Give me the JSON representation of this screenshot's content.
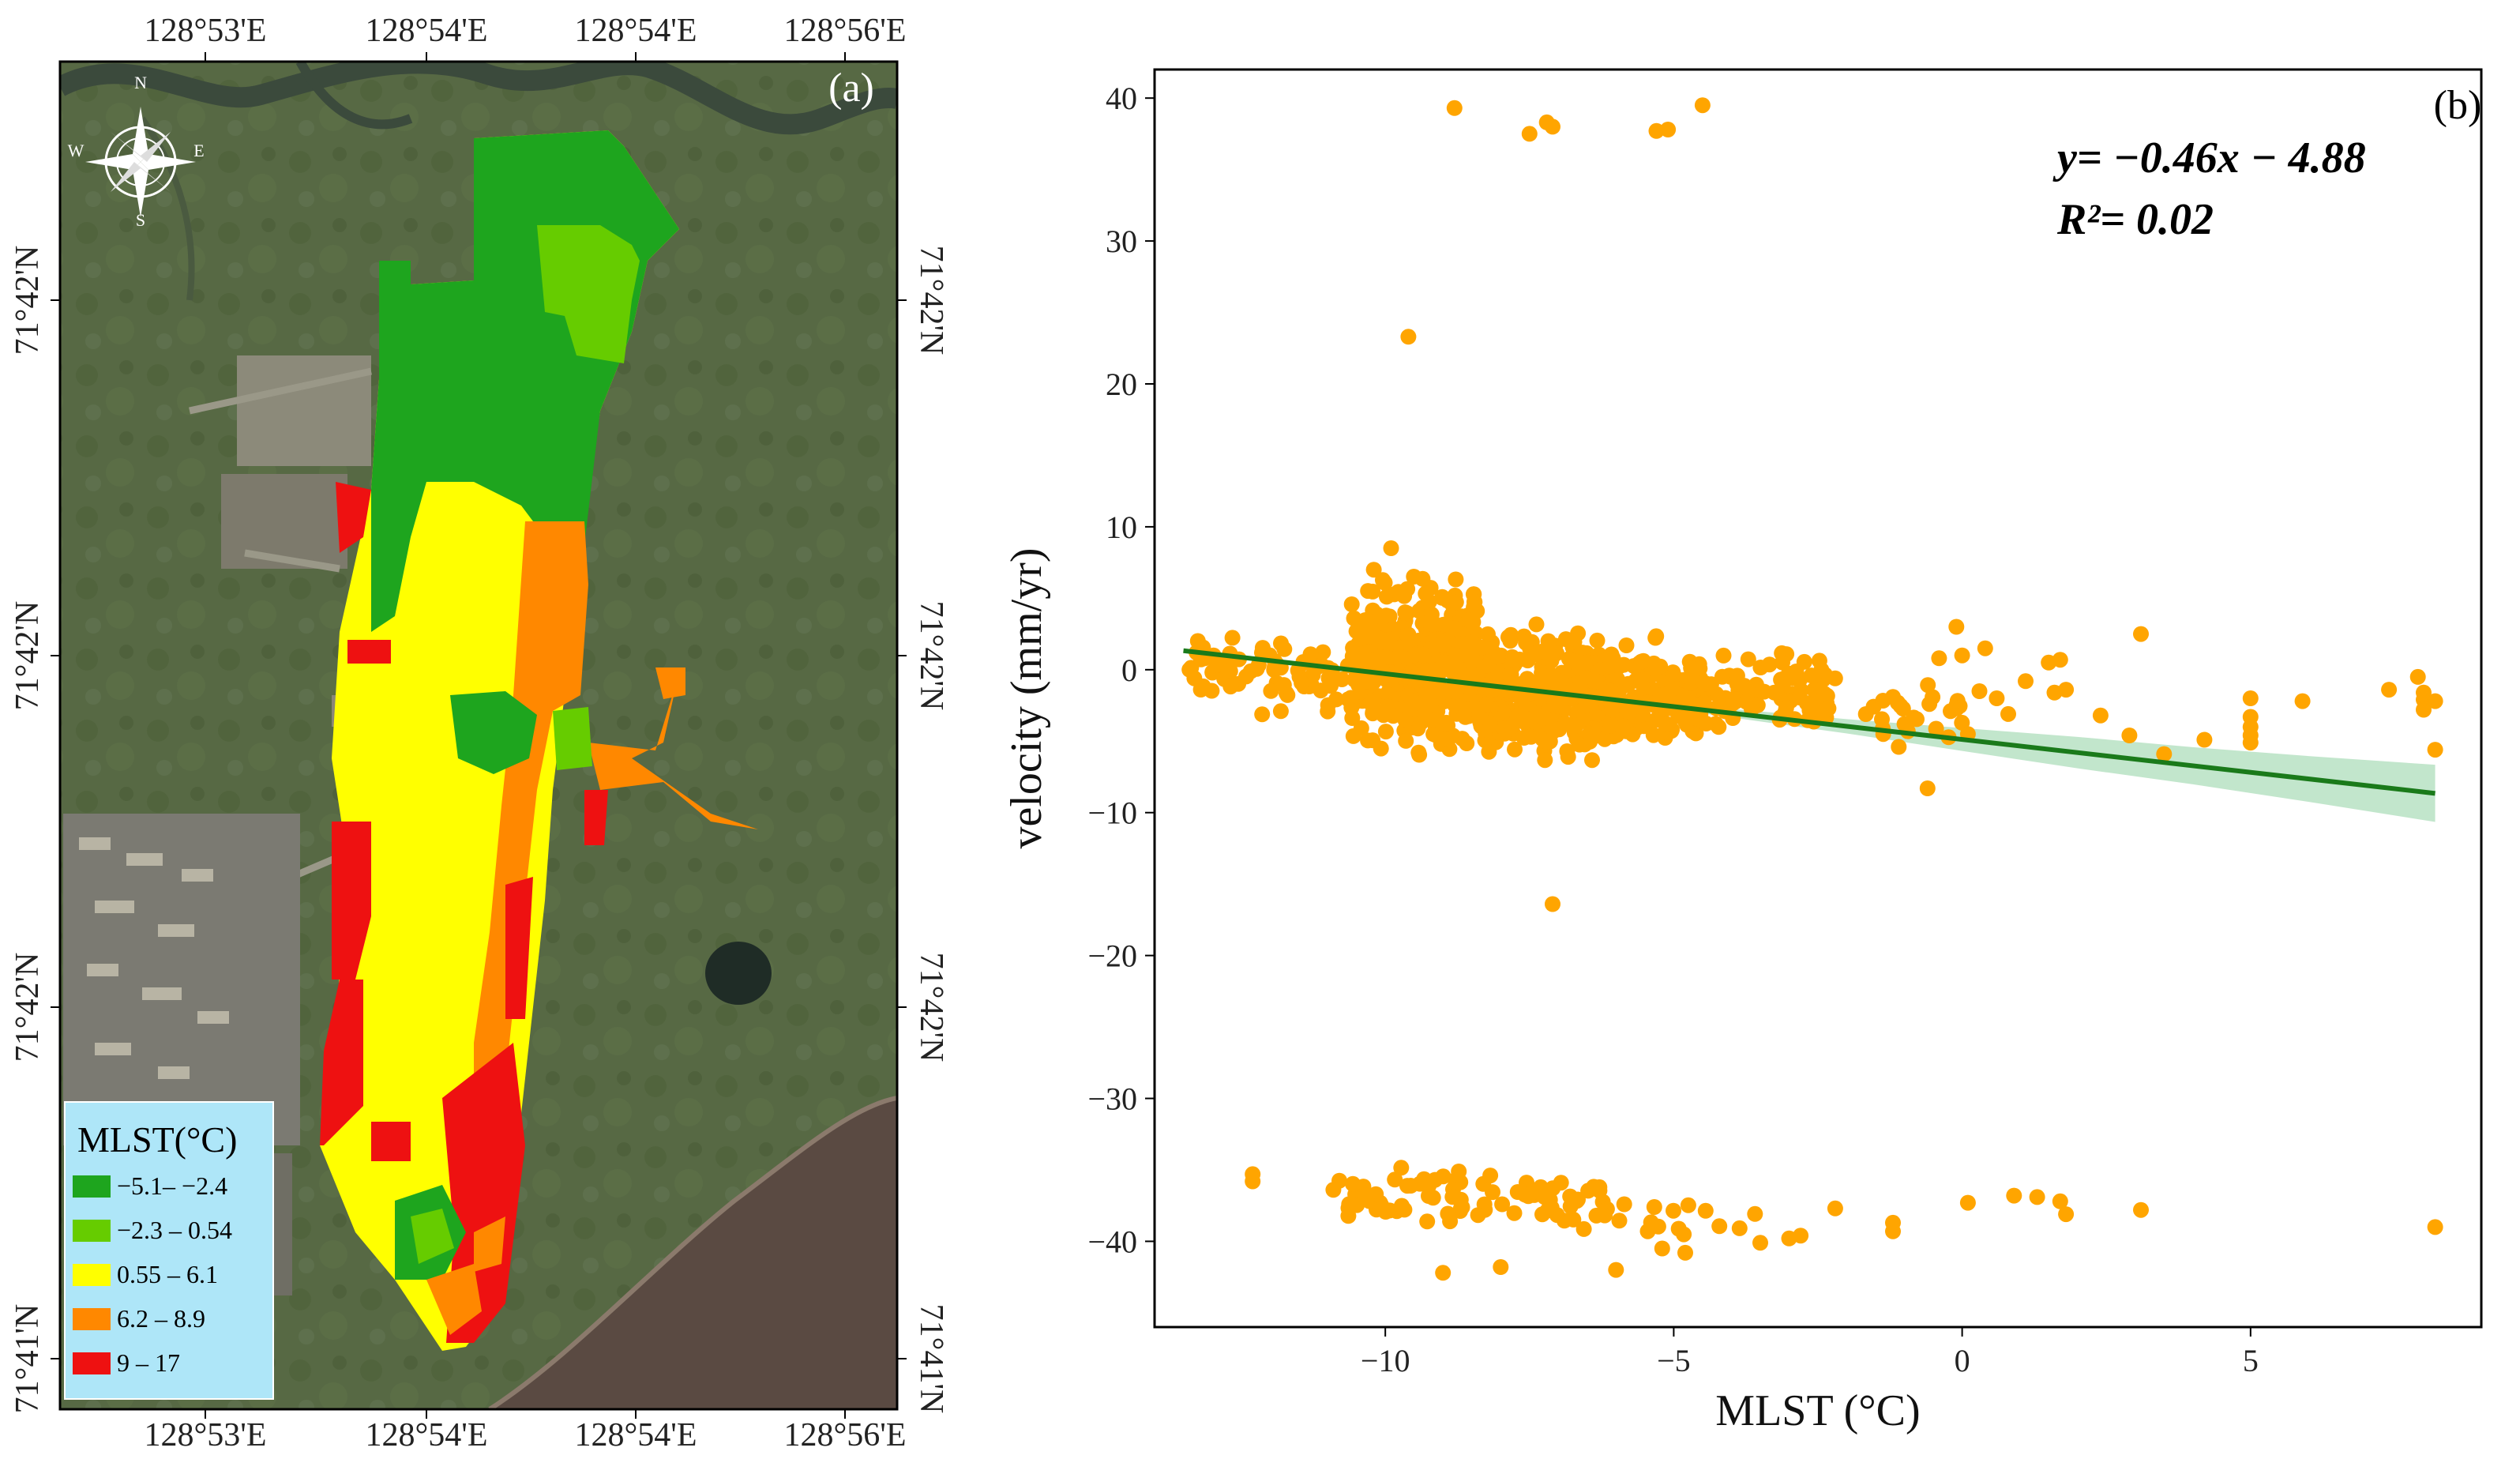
{
  "colors": {
    "green_dark": "#1ea51e",
    "green_light": "#66cc00",
    "yellow": "#ffff00",
    "orange": "#ff8800",
    "red": "#ee1111",
    "point": "#ffa500",
    "fit_line": "#1a7a1a",
    "ci_band": "#b7e2c3",
    "legend_bg": "#aee6f8"
  },
  "map": {
    "panel_label": "(a)",
    "top_ticks": [
      "128°53'E",
      "128°54'E",
      "128°54'E",
      "128°56'E"
    ],
    "bottom_ticks": [
      "128°53'E",
      "128°54'E",
      "128°54'E",
      "128°56'E"
    ],
    "left_ticks": [
      "71°42'N",
      "71°42'N",
      "71°42'N",
      "71°41'N"
    ],
    "right_ticks": [
      "71°42'N",
      "71°42'N",
      "71°42'N",
      "71°41'N"
    ],
    "compass": {
      "n": "N",
      "s": "S",
      "e": "E",
      "w": "W"
    },
    "legend": {
      "title": "MLST(°C)",
      "items": [
        {
          "label": "−5.1– −2.4",
          "color": "#1ea51e"
        },
        {
          "label": "−2.3 – 0.54",
          "color": "#66cc00"
        },
        {
          "label": "0.55 – 6.1",
          "color": "#ffff00"
        },
        {
          "label": "6.2 – 8.9",
          "color": "#ff8800"
        },
        {
          "label": "9 – 17",
          "color": "#ee1111"
        }
      ]
    }
  },
  "chart_data": {
    "type": "scatter",
    "panel_label": "(b)",
    "xlabel": "MLST (°C)",
    "ylabel": "velocity (mm/yr)",
    "xlim": [
      -14,
      9
    ],
    "ylim": [
      -46,
      42
    ],
    "xticks": [
      -10,
      -5,
      0,
      5
    ],
    "xtick_labels": [
      "−10",
      "−5",
      "0",
      "5"
    ],
    "yticks": [
      40,
      30,
      20,
      10,
      0,
      -10,
      -20,
      -30,
      -40
    ],
    "ytick_labels": [
      "40",
      "30",
      "20",
      "10",
      "0",
      "−10",
      "−20",
      "−30",
      "−40"
    ],
    "equation": "y= −0.46x − 4.88",
    "r_squared": "R²= 0.02",
    "fit": {
      "slope": -0.46,
      "intercept": -4.88,
      "x_range": [
        -13.5,
        8.2
      ]
    },
    "confidence_band": {
      "x": [
        -5,
        -2,
        0,
        2,
        4,
        6,
        8.2
      ],
      "halfwidth": [
        0.2,
        0.5,
        0.8,
        1.1,
        1.3,
        1.6,
        2.0
      ]
    },
    "clusters": [
      {
        "x_range": [
          -13.5,
          -12.3
        ],
        "y_range": [
          -3,
          3
        ],
        "count": 35
      },
      {
        "x_range": [
          -12.3,
          -10.6
        ],
        "y_range": [
          -4,
          3
        ],
        "count": 45
      },
      {
        "x_range": [
          -10.6,
          -8.4
        ],
        "y_range": [
          -7,
          8
        ],
        "count": 420
      },
      {
        "x_range": [
          -8.4,
          -6.2
        ],
        "y_range": [
          -8,
          4
        ],
        "count": 320
      },
      {
        "x_range": [
          -6.2,
          -4.5
        ],
        "y_range": [
          -7,
          3
        ],
        "count": 150
      },
      {
        "x_range": [
          -4.5,
          -2.2
        ],
        "y_range": [
          -5,
          2
        ],
        "count": 85
      },
      {
        "x_range": [
          -1.7,
          0.0
        ],
        "y_range": [
          -6,
          1
        ],
        "count": 22
      },
      {
        "x_range": [
          -10.8,
          -6.0
        ],
        "y_range": [
          -40,
          -34
        ],
        "count": 85
      },
      {
        "x_range": [
          -6.0,
          -3.5
        ],
        "y_range": [
          -41,
          -36
        ],
        "count": 14
      }
    ],
    "points": [
      [
        -8.8,
        39.3
      ],
      [
        -7.5,
        37.5
      ],
      [
        -7.2,
        38.3
      ],
      [
        -7.1,
        38.0
      ],
      [
        -5.3,
        37.7
      ],
      [
        -5.1,
        37.8
      ],
      [
        -4.5,
        39.5
      ],
      [
        -9.6,
        23.3
      ],
      [
        -9.9,
        8.5
      ],
      [
        -10.2,
        7.0
      ],
      [
        -7.1,
        -16.4
      ],
      [
        -12.3,
        -35.3
      ],
      [
        -12.3,
        -35.8
      ],
      [
        -10.9,
        -36.4
      ],
      [
        -9.0,
        -42.2
      ],
      [
        -8.0,
        -41.8
      ],
      [
        -6.0,
        -42.0
      ],
      [
        -5.2,
        -40.5
      ],
      [
        -4.8,
        -40.8
      ],
      [
        -3.5,
        -40.1
      ],
      [
        -3.0,
        -39.8
      ],
      [
        -2.8,
        -39.6
      ],
      [
        -2.2,
        -37.7
      ],
      [
        -1.2,
        -38.7
      ],
      [
        -1.2,
        -39.3
      ],
      [
        0.1,
        -37.3
      ],
      [
        0.9,
        -36.8
      ],
      [
        1.3,
        -36.9
      ],
      [
        1.7,
        -37.2
      ],
      [
        1.8,
        -38.1
      ],
      [
        3.1,
        -37.8
      ],
      [
        8.2,
        -39.0
      ],
      [
        -1.2,
        -1.9
      ],
      [
        -1.1,
        -5.4
      ],
      [
        -1.0,
        -3.8
      ],
      [
        -0.6,
        -8.3
      ],
      [
        -0.4,
        0.8
      ],
      [
        -0.2,
        -2.9
      ],
      [
        -0.1,
        3.0
      ],
      [
        0.0,
        1.0
      ],
      [
        0.1,
        -4.5
      ],
      [
        0.3,
        -1.5
      ],
      [
        0.4,
        1.5
      ],
      [
        0.6,
        -2.0
      ],
      [
        0.8,
        -3.1
      ],
      [
        1.1,
        -0.8
      ],
      [
        1.5,
        0.5
      ],
      [
        1.6,
        -1.6
      ],
      [
        1.7,
        0.7
      ],
      [
        1.8,
        -1.4
      ],
      [
        2.4,
        -3.2
      ],
      [
        2.9,
        -4.6
      ],
      [
        3.1,
        2.5
      ],
      [
        3.5,
        -5.9
      ],
      [
        4.2,
        -4.9
      ],
      [
        5.0,
        -2.0
      ],
      [
        5.0,
        -3.3
      ],
      [
        5.0,
        -4.0
      ],
      [
        5.0,
        -4.6
      ],
      [
        5.0,
        -5.1
      ],
      [
        5.9,
        -2.2
      ],
      [
        7.4,
        -1.4
      ],
      [
        7.9,
        -0.5
      ],
      [
        8.0,
        -1.6
      ],
      [
        8.0,
        -2.1
      ],
      [
        8.0,
        -2.8
      ],
      [
        8.2,
        -2.2
      ],
      [
        8.2,
        -5.6
      ]
    ]
  }
}
